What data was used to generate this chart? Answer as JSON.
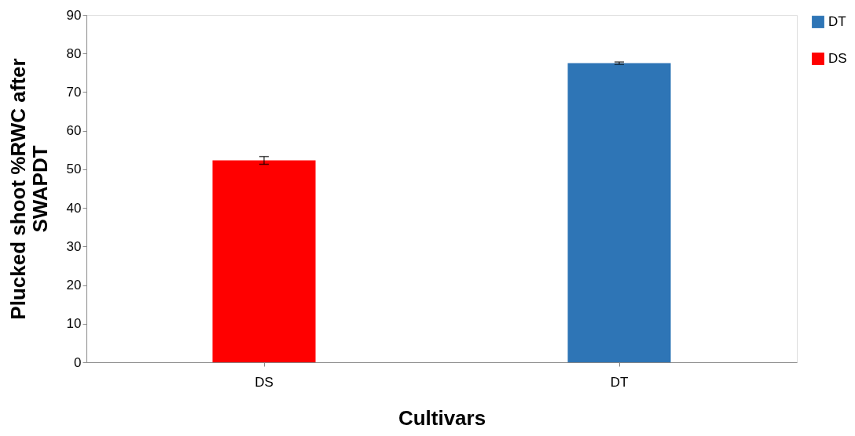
{
  "chart_data": {
    "type": "bar",
    "xlabel": "Cultivars",
    "ylabel": "Plucked shoot %RWC after SWAPDT",
    "categories": [
      "DS",
      "DT"
    ],
    "series": [
      {
        "name": "DT",
        "color": "#2e75b6",
        "values": [
          null,
          77.5
        ],
        "errors": [
          null,
          0.3
        ]
      },
      {
        "name": "DS",
        "color": "#ff0000",
        "values": [
          52.3,
          null
        ],
        "errors": [
          1.0,
          null
        ]
      }
    ],
    "ylim": [
      0,
      90
    ],
    "yticks": [
      0,
      10,
      20,
      30,
      40,
      50,
      60,
      70,
      80,
      90
    ],
    "grid": false,
    "legend": "right"
  }
}
